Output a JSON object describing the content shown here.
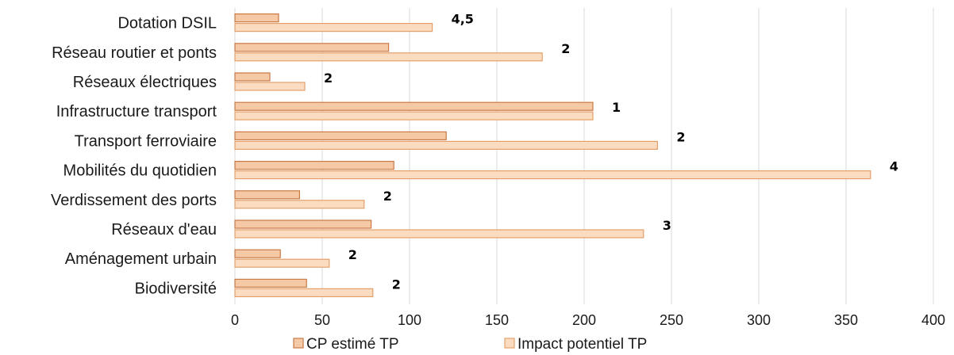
{
  "chart_data": {
    "type": "bar",
    "orientation": "horizontal",
    "title": "",
    "xlabel": "",
    "ylabel": "",
    "categories": [
      "Dotation DSIL",
      "Réseau routier et ponts",
      "Réseaux électriques",
      "Infrastructure transport",
      "Transport ferroviaire",
      "Mobilités du quotidien",
      "Verdissement des ports",
      "Réseaux d'eau",
      "Aménagement urbain",
      "Biodiversité"
    ],
    "series": [
      {
        "name": "CP estimé TP",
        "color": "#f6c9a6",
        "edge": "#c97a45",
        "values": [
          25,
          88,
          20,
          205,
          121,
          91,
          37,
          78,
          26,
          41
        ]
      },
      {
        "name": "Impact potentiel TP",
        "color": "#fbdcc0",
        "edge": "#e4a06b",
        "values": [
          113,
          176,
          40,
          205,
          242,
          364,
          74,
          234,
          54,
          79
        ]
      }
    ],
    "data_labels": [
      "4,5",
      "2",
      "2",
      "1",
      "2",
      "4",
      "2",
      "3",
      "2",
      "2"
    ],
    "xlim": [
      0,
      400
    ],
    "xticks": [
      0,
      50,
      100,
      150,
      200,
      250,
      300,
      350,
      400
    ],
    "grid": true,
    "legend": "bottom"
  }
}
